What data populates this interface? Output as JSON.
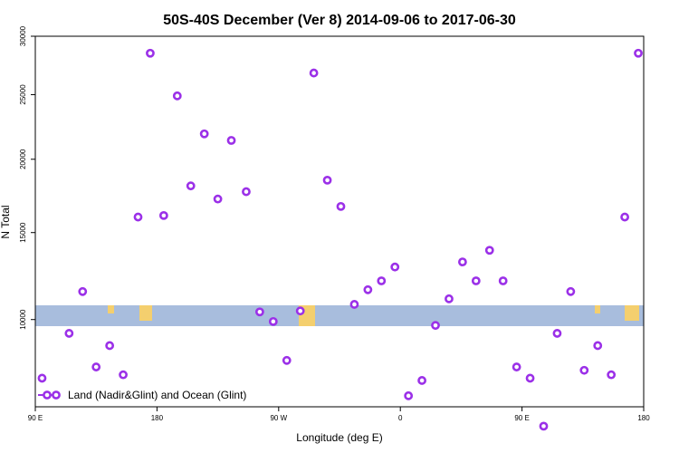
{
  "chart_data": {
    "type": "scatter",
    "title": "50S-40S December (Ver 8)   2014-09-06 to 2017-06-30",
    "xlabel": "Longitude (deg E)",
    "ylabel": "N Total",
    "xlim": [
      90,
      540
    ],
    "ylim": [
      6000,
      30000
    ],
    "y_scale": "sqrt",
    "x_ticks": [
      {
        "value": 90,
        "label": "90 E"
      },
      {
        "value": 180,
        "label": "180"
      },
      {
        "value": 270,
        "label": "90 W"
      },
      {
        "value": 360,
        "label": "0"
      },
      {
        "value": 450,
        "label": "90 E"
      },
      {
        "value": 540,
        "label": "180"
      }
    ],
    "y_ticks": [
      {
        "value": 10000,
        "label": "10000"
      },
      {
        "value": 15000,
        "label": "15000"
      },
      {
        "value": 20000,
        "label": "20000"
      },
      {
        "value": 25000,
        "label": "25000"
      },
      {
        "value": 30000,
        "label": "30000"
      }
    ],
    "legend": {
      "label": "Land (Nadir&Glint) and Ocean (Glint)",
      "position": "bottom-left"
    },
    "series": [
      {
        "name": "Land (Nadir&Glint) and Ocean (Glint)",
        "color": "#9b30e8",
        "x": [
          95,
          115,
          125,
          135,
          145,
          155,
          166,
          175,
          185,
          195,
          205,
          215,
          225,
          235,
          246,
          256,
          266,
          276,
          286,
          296,
          306,
          316,
          326,
          336,
          346,
          356,
          366,
          376,
          386,
          396,
          406,
          416,
          426,
          436,
          446,
          456,
          466,
          476,
          486,
          496,
          506,
          516,
          526,
          536
        ],
        "y": [
          7200,
          9300,
          11500,
          7700,
          8700,
          7350,
          16000,
          28500,
          16100,
          24900,
          18100,
          21900,
          17200,
          21400,
          17700,
          10400,
          9900,
          8000,
          10450,
          26800,
          18500,
          16700,
          10800,
          11600,
          12100,
          12900,
          6450,
          7100,
          9700,
          11100,
          13200,
          12100,
          13900,
          12100,
          7700,
          7200,
          5250,
          9300,
          11500,
          7550,
          8700,
          7350,
          16000,
          28500
        ]
      }
    ],
    "ocean_band_color": "#a8bddd",
    "land_color": "#f4cf6e"
  }
}
